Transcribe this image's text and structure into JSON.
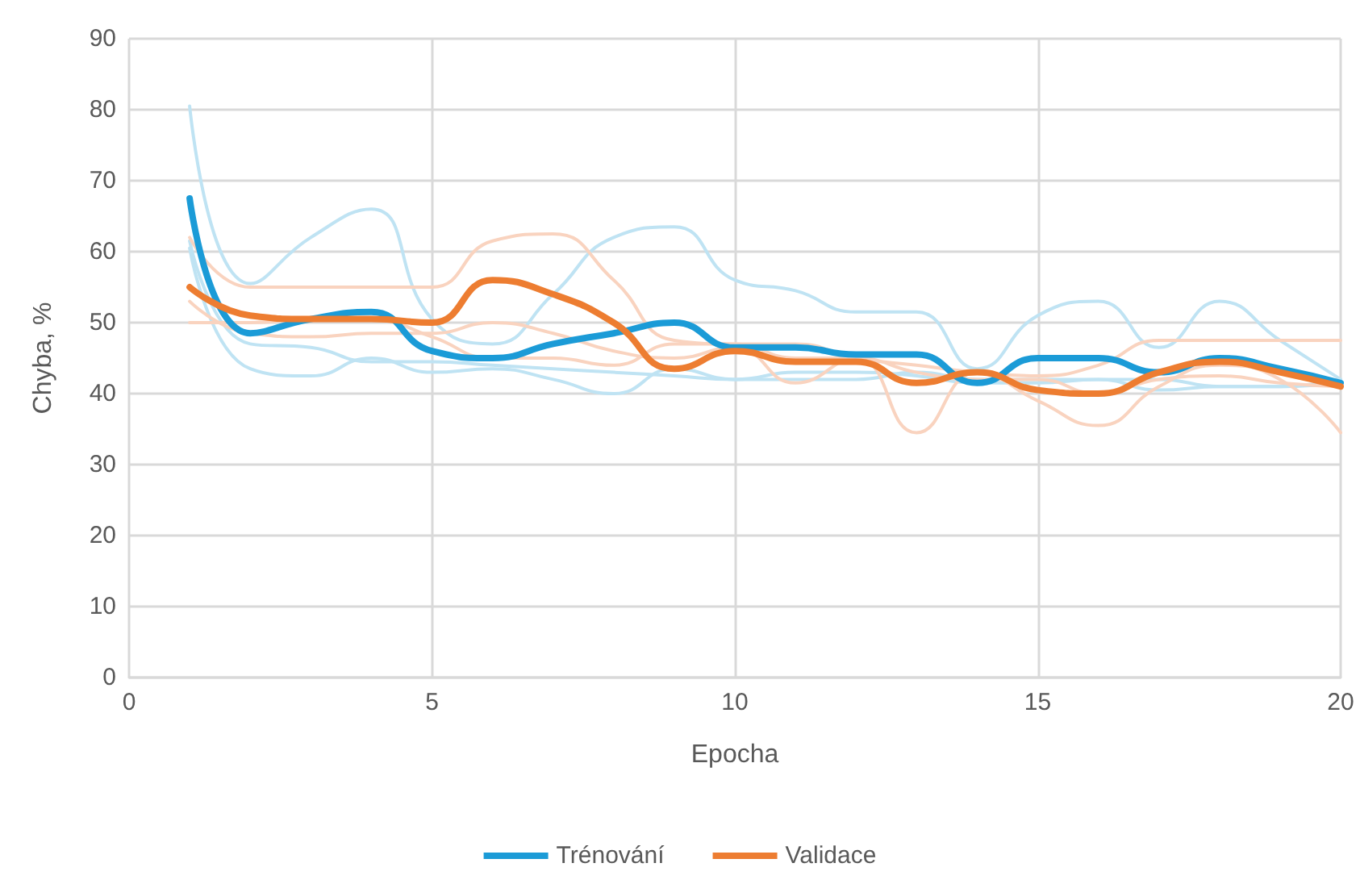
{
  "chart_data": {
    "type": "line",
    "xlabel": "Epocha",
    "ylabel": "Chyba, %",
    "x": [
      1,
      2,
      3,
      4,
      5,
      6,
      7,
      8,
      9,
      10,
      11,
      12,
      13,
      14,
      15,
      16,
      17,
      18,
      19,
      20
    ],
    "xlim": [
      0,
      20
    ],
    "xticks": [
      0,
      5,
      10,
      15,
      20
    ],
    "ylim": [
      0,
      90
    ],
    "yticks": [
      0,
      10,
      20,
      30,
      40,
      50,
      60,
      70,
      80,
      90
    ],
    "grid": true,
    "legend": "bottom",
    "marker": "none",
    "line_style": "solid",
    "series": [
      {
        "color": "#bfe3f3",
        "values": [
          80.5,
          55.5,
          62,
          66,
          50.5,
          47,
          54,
          62,
          63.5,
          56,
          54.5,
          51.5,
          51.5,
          43.5,
          51,
          53,
          46.5,
          53,
          47.5,
          42
        ]
      },
      {
        "color": "#bfe3f3",
        "values": [
          61.5,
          47,
          46.5,
          44.5,
          44.5,
          44,
          43.5,
          43,
          42.5,
          42,
          43,
          43,
          42.5,
          41.5,
          41.5,
          42,
          42,
          41,
          41,
          41.5
        ]
      },
      {
        "color": "#bfe3f3",
        "values": [
          60.5,
          43.5,
          42.5,
          45,
          43,
          43.5,
          42,
          40,
          43.5,
          42,
          42,
          42,
          43,
          42,
          42,
          42,
          40.5,
          41,
          41,
          42
        ]
      },
      {
        "color": "#f9d3bf",
        "values": [
          62,
          55,
          55,
          55,
          55,
          61.5,
          62.5,
          56,
          47.5,
          47,
          47,
          45,
          44,
          43,
          42.5,
          44,
          47.5,
          47.5,
          47.5,
          47.5
        ]
      },
      {
        "color": "#f9d3bf",
        "values": [
          53,
          48.5,
          48,
          48.5,
          48.5,
          50,
          48.5,
          46,
          45,
          46.5,
          41.5,
          45,
          34.5,
          43,
          39,
          35.5,
          41,
          44,
          42,
          34.5
        ]
      },
      {
        "color": "#f9d3bf",
        "values": [
          50,
          50,
          50.5,
          50.5,
          48,
          45,
          45,
          44,
          47,
          47,
          45,
          45,
          43,
          42,
          42,
          40,
          42,
          42.5,
          41.5,
          41
        ]
      },
      {
        "name": "Trénování",
        "color": "#1b9bd7",
        "values": [
          67.5,
          48.5,
          50.5,
          51.5,
          46,
          45,
          47,
          48.5,
          50,
          46.5,
          46.5,
          45.5,
          45.5,
          41.5,
          45,
          45,
          43,
          45,
          43.5,
          41.5
        ]
      },
      {
        "name": "Validace",
        "color": "#ed7d31",
        "values": [
          55,
          51,
          50.5,
          50.5,
          50,
          56,
          54,
          50,
          43.5,
          46,
          44.5,
          44.5,
          41.5,
          43,
          40.5,
          40,
          43,
          44.5,
          43,
          41
        ]
      }
    ]
  }
}
